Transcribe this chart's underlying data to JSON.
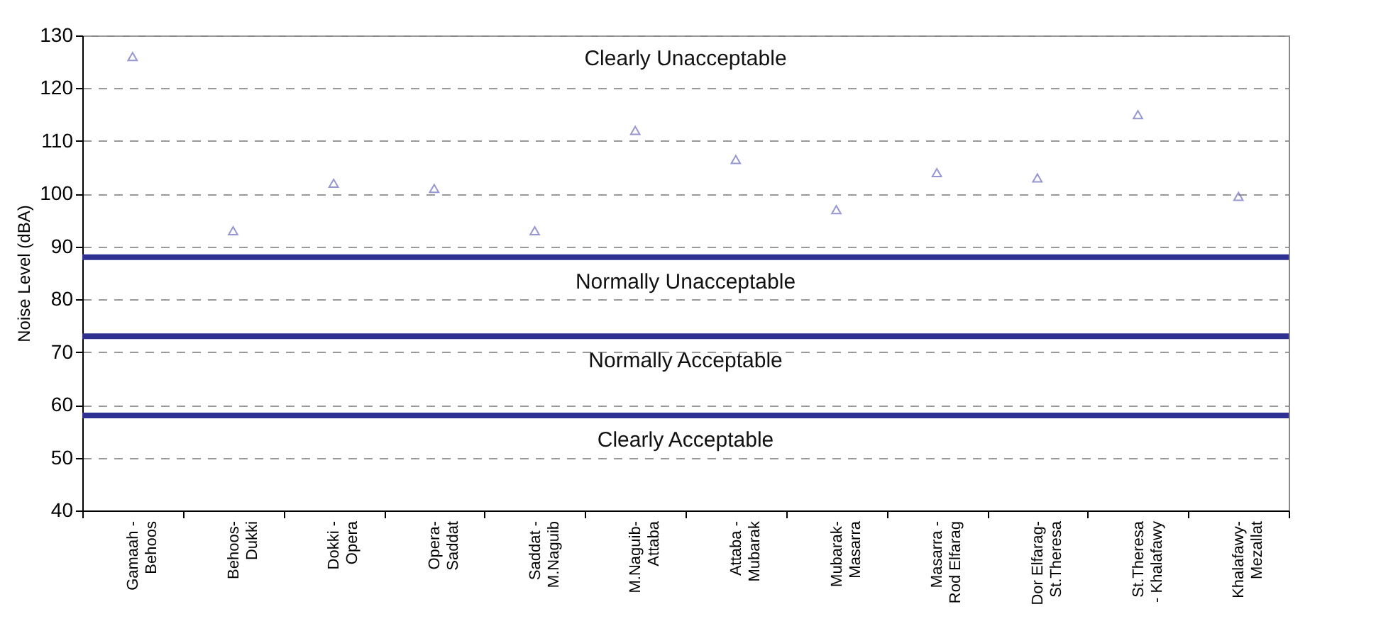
{
  "chart_data": {
    "type": "scatter",
    "ylabel": "Noise Level (dBA)",
    "categories": [
      "Gamaah -\nBehoos",
      "Behoos-\nDukki",
      "Dokki -\nOpera",
      "Opera-\nSaddat",
      "Saddat -\nM.Naguib",
      "M.Naguib-\nAttaba",
      "Attaba -\nMubarak",
      "Mubarak-\nMasarra",
      "Masarra -\nRod Elfarag",
      "Dor Elfarag-\nSt.Theresa",
      "St.Theresa\n- Khalafawy",
      "Khalafawy-\nMezallat"
    ],
    "series": [
      {
        "color": "#6b6bbf",
        "values": [
          126,
          93,
          102,
          101,
          93,
          112,
          106.5,
          97,
          104,
          103,
          115,
          99.5
        ]
      }
    ],
    "ylim": [
      40,
      130
    ],
    "yticks": [
      40,
      50,
      60,
      70,
      80,
      90,
      100,
      110,
      120,
      130
    ],
    "grid": "y",
    "marker": "triangle",
    "ref_lines": [
      {
        "axis": "y",
        "value": 88,
        "color": "#2e3192"
      },
      {
        "axis": "y",
        "value": 73,
        "color": "#2e3192"
      },
      {
        "axis": "y",
        "value": 58,
        "color": "#2e3192"
      }
    ],
    "annotations": [
      "Clearly Unacceptable",
      "Normally Unacceptable",
      "Normally Acceptable",
      "Clearly Acceptable"
    ]
  }
}
